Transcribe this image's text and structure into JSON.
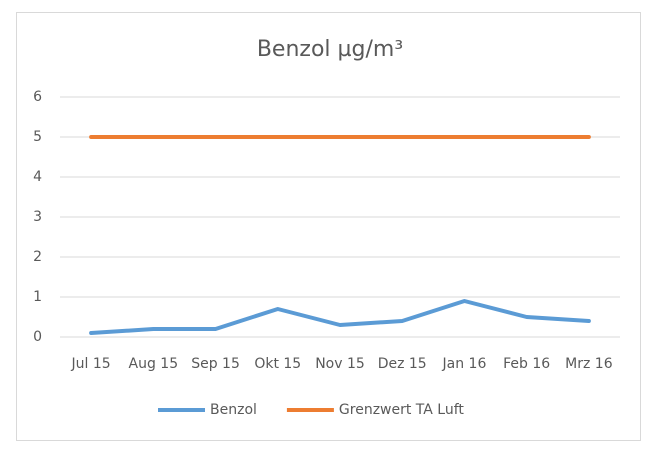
{
  "chart_data": {
    "type": "line",
    "title": "Benzol µg/m³",
    "categories": [
      "Jul 15",
      "Aug 15",
      "Sep 15",
      "Okt 15",
      "Nov 15",
      "Dez 15",
      "Jan 16",
      "Feb 16",
      "Mrz 16"
    ],
    "series": [
      {
        "name": "Benzol",
        "color": "#5b9bd5",
        "values": [
          0.1,
          0.2,
          0.2,
          0.7,
          0.3,
          0.4,
          0.9,
          0.5,
          0.4
        ]
      },
      {
        "name": "Grenzwert TA Luft",
        "color": "#ed7d31",
        "values": [
          5,
          5,
          5,
          5,
          5,
          5,
          5,
          5,
          5
        ]
      }
    ],
    "ylim": [
      0,
      6
    ],
    "yticks": [
      0,
      1,
      2,
      3,
      4,
      5,
      6
    ],
    "grid": true,
    "legend": "bottom"
  }
}
